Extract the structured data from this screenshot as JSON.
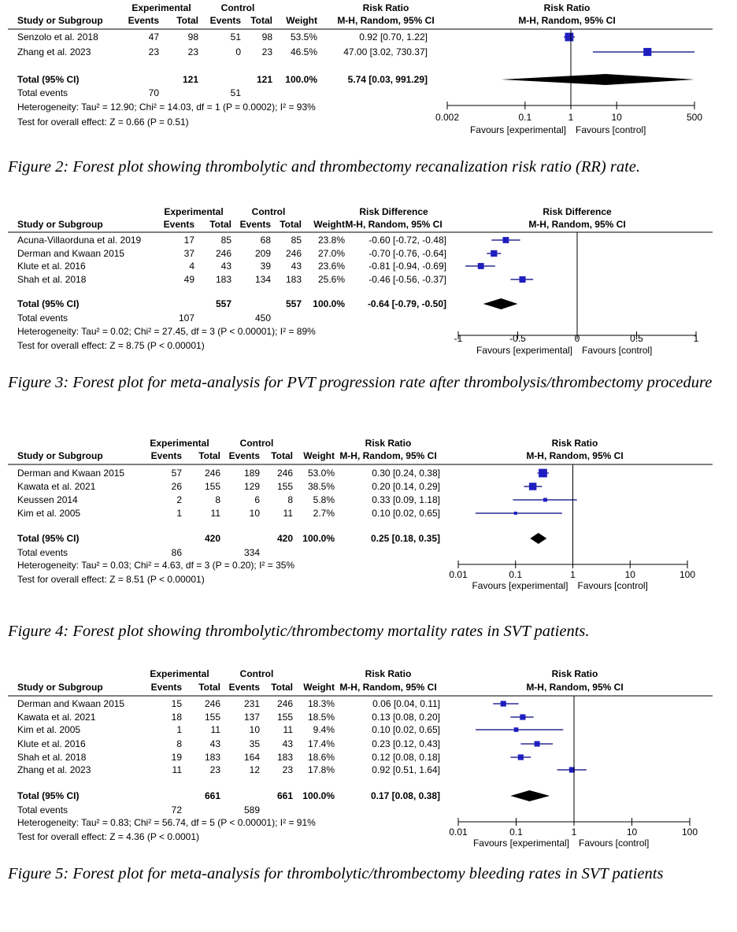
{
  "colors": {
    "marker": "#1f1fbf",
    "line": "#000080",
    "diamond": "#000000",
    "text": "#000000"
  },
  "chart_data": [
    {
      "type": "forest",
      "group_header": {
        "experimental": "Experimental",
        "control": "Control"
      },
      "headers": {
        "study": "Study or Subgroup",
        "events": "Events",
        "total": "Total",
        "weight": "Weight",
        "effect_title": "Risk Ratio",
        "effect_method": "M-H, Random, 95% CI"
      },
      "studies": [
        {
          "name": "Senzolo et al. 2018",
          "exp_events": "47",
          "exp_total": "98",
          "ctl_events": "51",
          "ctl_total": "98",
          "weight": "53.5%",
          "ci_text": "0.92 [0.70, 1.22]",
          "est": 0.92,
          "low": 0.7,
          "high": 1.22,
          "w": 53.5
        },
        {
          "name": "Zhang et al. 2023",
          "exp_events": "23",
          "exp_total": "23",
          "ctl_events": "0",
          "ctl_total": "23",
          "weight": "46.5%",
          "ci_text": "47.00 [3.02, 730.37]",
          "est": 47.0,
          "low": 3.02,
          "high": 730.37,
          "w": 46.5
        }
      ],
      "total": {
        "label": "Total (95% CI)",
        "exp_total": "121",
        "ctl_total": "121",
        "weight": "100.0%",
        "ci_text": "5.74 [0.03, 991.29]",
        "est": 5.74,
        "low": 0.03,
        "high": 991.29
      },
      "total_events": {
        "label": "Total events",
        "exp": "70",
        "ctl": "51"
      },
      "heterogeneity": "Heterogeneity: Tau² = 12.90; Chi² = 14.03, df = 1 (P = 0.0002); I² = 93%",
      "overall_test": "Test for overall effect: Z = 0.66 (P = 0.51)",
      "axis": {
        "scale": "log",
        "ticks": [
          "0.002",
          "0.1",
          "1",
          "10",
          "500"
        ],
        "tick_values": [
          0.002,
          0.1,
          1,
          10,
          500
        ],
        "min": 0.002,
        "max": 500,
        "ref": 1,
        "left_label": "Favours [experimental]",
        "right_label": "Favours [control]"
      },
      "caption": "Figure 2: Forest plot showing thrombolytic and thrombectomy recanalization risk ratio (RR) rate."
    },
    {
      "type": "forest",
      "group_header": {
        "experimental": "Experimental",
        "control": "Control"
      },
      "headers": {
        "study": "Study or Subgroup",
        "events": "Events",
        "total": "Total",
        "weight": "Weight",
        "effect_title": "Risk Difference",
        "effect_method": "M-H, Random, 95% CI"
      },
      "studies": [
        {
          "name": "Acuna-Villaorduna et al. 2019",
          "exp_events": "17",
          "exp_total": "85",
          "ctl_events": "68",
          "ctl_total": "85",
          "weight": "23.8%",
          "ci_text": "-0.60 [-0.72, -0.48]",
          "est": -0.6,
          "low": -0.72,
          "high": -0.48,
          "w": 23.8
        },
        {
          "name": "Derman and Kwaan 2015",
          "exp_events": "37",
          "exp_total": "246",
          "ctl_events": "209",
          "ctl_total": "246",
          "weight": "27.0%",
          "ci_text": "-0.70 [-0.76, -0.64]",
          "est": -0.7,
          "low": -0.76,
          "high": -0.64,
          "w": 27.0
        },
        {
          "name": "Klute et al. 2016",
          "exp_events": "4",
          "exp_total": "43",
          "ctl_events": "39",
          "ctl_total": "43",
          "weight": "23.6%",
          "ci_text": "-0.81 [-0.94, -0.69]",
          "est": -0.81,
          "low": -0.94,
          "high": -0.69,
          "w": 23.6
        },
        {
          "name": "Shah et al. 2018",
          "exp_events": "49",
          "exp_total": "183",
          "ctl_events": "134",
          "ctl_total": "183",
          "weight": "25.6%",
          "ci_text": "-0.46 [-0.56, -0.37]",
          "est": -0.46,
          "low": -0.56,
          "high": -0.37,
          "w": 25.6
        }
      ],
      "total": {
        "label": "Total (95% CI)",
        "exp_total": "557",
        "ctl_total": "557",
        "weight": "100.0%",
        "ci_text": "-0.64 [-0.79, -0.50]",
        "est": -0.64,
        "low": -0.79,
        "high": -0.5
      },
      "total_events": {
        "label": "Total events",
        "exp": "107",
        "ctl": "450"
      },
      "heterogeneity": "Heterogeneity: Tau² = 0.02; Chi² = 27.45, df = 3 (P < 0.00001); I² = 89%",
      "overall_test": "Test for overall effect: Z = 8.75 (P < 0.00001)",
      "axis": {
        "scale": "linear",
        "ticks": [
          "-1",
          "-0.5",
          "0",
          "0.5",
          "1"
        ],
        "tick_values": [
          -1,
          -0.5,
          0,
          0.5,
          1
        ],
        "min": -1,
        "max": 1,
        "ref": 0,
        "left_label": "Favours [experimental]",
        "right_label": "Favours [control]"
      },
      "caption": "Figure 3: Forest plot for meta-analysis for PVT progression rate after thrombolysis/thrombectomy procedure"
    },
    {
      "type": "forest",
      "group_header": {
        "experimental": "Experimental",
        "control": "Control"
      },
      "headers": {
        "study": "Study or Subgroup",
        "events": "Events",
        "total": "Total",
        "weight": "Weight",
        "effect_title": "Risk Ratio",
        "effect_method": "M-H, Random, 95% CI"
      },
      "studies": [
        {
          "name": "Derman and Kwaan 2015",
          "exp_events": "57",
          "exp_total": "246",
          "ctl_events": "189",
          "ctl_total": "246",
          "weight": "53.0%",
          "ci_text": "0.30 [0.24, 0.38]",
          "est": 0.3,
          "low": 0.24,
          "high": 0.38,
          "w": 53.0
        },
        {
          "name": "Kawata et al. 2021",
          "exp_events": "26",
          "exp_total": "155",
          "ctl_events": "129",
          "ctl_total": "155",
          "weight": "38.5%",
          "ci_text": "0.20 [0.14, 0.29]",
          "est": 0.2,
          "low": 0.14,
          "high": 0.29,
          "w": 38.5
        },
        {
          "name": "Keussen 2014",
          "exp_events": "2",
          "exp_total": "8",
          "ctl_events": "6",
          "ctl_total": "8",
          "weight": "5.8%",
          "ci_text": "0.33 [0.09, 1.18]",
          "est": 0.33,
          "low": 0.09,
          "high": 1.18,
          "w": 5.8
        },
        {
          "name": "Kim et al. 2005",
          "exp_events": "1",
          "exp_total": "11",
          "ctl_events": "10",
          "ctl_total": "11",
          "weight": "2.7%",
          "ci_text": "0.10 [0.02, 0.65]",
          "est": 0.1,
          "low": 0.02,
          "high": 0.65,
          "w": 2.7
        }
      ],
      "total": {
        "label": "Total (95% CI)",
        "exp_total": "420",
        "ctl_total": "420",
        "weight": "100.0%",
        "ci_text": "0.25 [0.18, 0.35]",
        "est": 0.25,
        "low": 0.18,
        "high": 0.35
      },
      "total_events": {
        "label": "Total events",
        "exp": "86",
        "ctl": "334"
      },
      "heterogeneity": "Heterogeneity: Tau² = 0.03; Chi² = 4.63, df = 3 (P = 0.20); I² = 35%",
      "overall_test": "Test for overall effect: Z = 8.51 (P < 0.00001)",
      "axis": {
        "scale": "log",
        "ticks": [
          "0.01",
          "0.1",
          "1",
          "10",
          "100"
        ],
        "tick_values": [
          0.01,
          0.1,
          1,
          10,
          100
        ],
        "min": 0.01,
        "max": 100,
        "ref": 1,
        "left_label": "Favours [experimental]",
        "right_label": "Favours [control]"
      },
      "caption": "Figure 4: Forest plot showing thrombolytic/thrombectomy mortality rates in SVT patients."
    },
    {
      "type": "forest",
      "group_header": {
        "experimental": "Experimental",
        "control": "Control"
      },
      "headers": {
        "study": "Study or Subgroup",
        "events": "Events",
        "total": "Total",
        "weight": "Weight",
        "effect_title": "Risk Ratio",
        "effect_method": "M-H, Random, 95% CI"
      },
      "studies": [
        {
          "name": "Derman and Kwaan 2015",
          "exp_events": "15",
          "exp_total": "246",
          "ctl_events": "231",
          "ctl_total": "246",
          "weight": "18.3%",
          "ci_text": "0.06 [0.04, 0.11]",
          "est": 0.06,
          "low": 0.04,
          "high": 0.11,
          "w": 18.3
        },
        {
          "name": "Kawata et al. 2021",
          "exp_events": "18",
          "exp_total": "155",
          "ctl_events": "137",
          "ctl_total": "155",
          "weight": "18.5%",
          "ci_text": "0.13 [0.08, 0.20]",
          "est": 0.13,
          "low": 0.08,
          "high": 0.2,
          "w": 18.5
        },
        {
          "name": "Kim et al. 2005",
          "exp_events": "1",
          "exp_total": "11",
          "ctl_events": "10",
          "ctl_total": "11",
          "weight": "9.4%",
          "ci_text": "0.10 [0.02, 0.65]",
          "est": 0.1,
          "low": 0.02,
          "high": 0.65,
          "w": 9.4
        },
        {
          "name": "Klute et al. 2016",
          "exp_events": "8",
          "exp_total": "43",
          "ctl_events": "35",
          "ctl_total": "43",
          "weight": "17.4%",
          "ci_text": "0.23 [0.12, 0.43]",
          "est": 0.23,
          "low": 0.12,
          "high": 0.43,
          "w": 17.4
        },
        {
          "name": "Shah et al. 2018",
          "exp_events": "19",
          "exp_total": "183",
          "ctl_events": "164",
          "ctl_total": "183",
          "weight": "18.6%",
          "ci_text": "0.12 [0.08, 0.18]",
          "est": 0.12,
          "low": 0.08,
          "high": 0.18,
          "w": 18.6
        },
        {
          "name": "Zhang et al. 2023",
          "exp_events": "11",
          "exp_total": "23",
          "ctl_events": "12",
          "ctl_total": "23",
          "weight": "17.8%",
          "ci_text": "0.92 [0.51, 1.64]",
          "est": 0.92,
          "low": 0.51,
          "high": 1.64,
          "w": 17.8
        }
      ],
      "total": {
        "label": "Total (95% CI)",
        "exp_total": "661",
        "ctl_total": "661",
        "weight": "100.0%",
        "ci_text": "0.17 [0.08, 0.38]",
        "est": 0.17,
        "low": 0.08,
        "high": 0.38
      },
      "total_events": {
        "label": "Total events",
        "exp": "72",
        "ctl": "589"
      },
      "heterogeneity": "Heterogeneity: Tau² = 0.83; Chi² = 56.74, df = 5 (P < 0.00001); I² = 91%",
      "overall_test": "Test for overall effect: Z = 4.36 (P < 0.0001)",
      "axis": {
        "scale": "log",
        "ticks": [
          "0.01",
          "0.1",
          "1",
          "10",
          "100"
        ],
        "tick_values": [
          0.01,
          0.1,
          1,
          10,
          100
        ],
        "min": 0.01,
        "max": 100,
        "ref": 1,
        "left_label": "Favours [experimental]",
        "right_label": "Favours [control]"
      },
      "caption": "Figure 5: Forest plot for meta-analysis for thrombolytic/thrombectomy bleeding rates in SVT patients"
    }
  ]
}
